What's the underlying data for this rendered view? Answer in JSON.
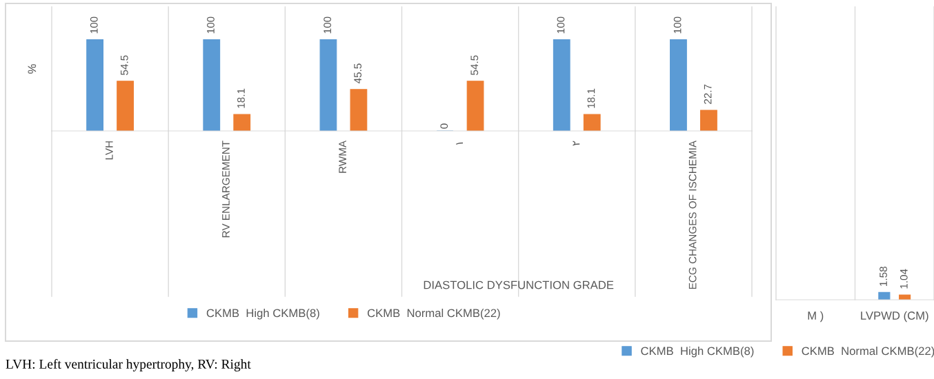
{
  "chart_data": [
    {
      "type": "bar",
      "ylabel": "%",
      "categories": [
        "LVH",
        "RV ENLARGEMENT",
        "RWMA",
        "١",
        "٢",
        "ECG CHANGES OF ISCHEMIA"
      ],
      "series": [
        {
          "name": "CKMB  High CKMB(8)",
          "color": "#5b9bd5",
          "values": [
            100,
            100,
            100,
            0,
            100,
            100
          ]
        },
        {
          "name": "CKMB  Normal CKMB(22)",
          "color": "#ed7d31",
          "values": [
            54.5,
            18.1,
            45.5,
            54.5,
            18.1,
            22.7
          ]
        }
      ],
      "data_labels": true,
      "legend": "bottom",
      "grid": false,
      "annotations": [
        "DIASTOLIC DYSFUNCTION GRADE",
        "LVH: Left ventricular hypertrophy, RV: Right"
      ]
    },
    {
      "type": "bar",
      "categories": [
        "M )",
        "LVPWD (CM)"
      ],
      "series": [
        {
          "name": "CKMB  High CKMB(8)",
          "color": "#5b9bd5",
          "values": [
            null,
            1.58
          ]
        },
        {
          "name": "CKMB  Normal CKMB(22)",
          "color": "#ed7d31",
          "values": [
            null,
            1.04
          ]
        }
      ],
      "data_labels": true,
      "legend": "bottom",
      "grid": false
    }
  ]
}
